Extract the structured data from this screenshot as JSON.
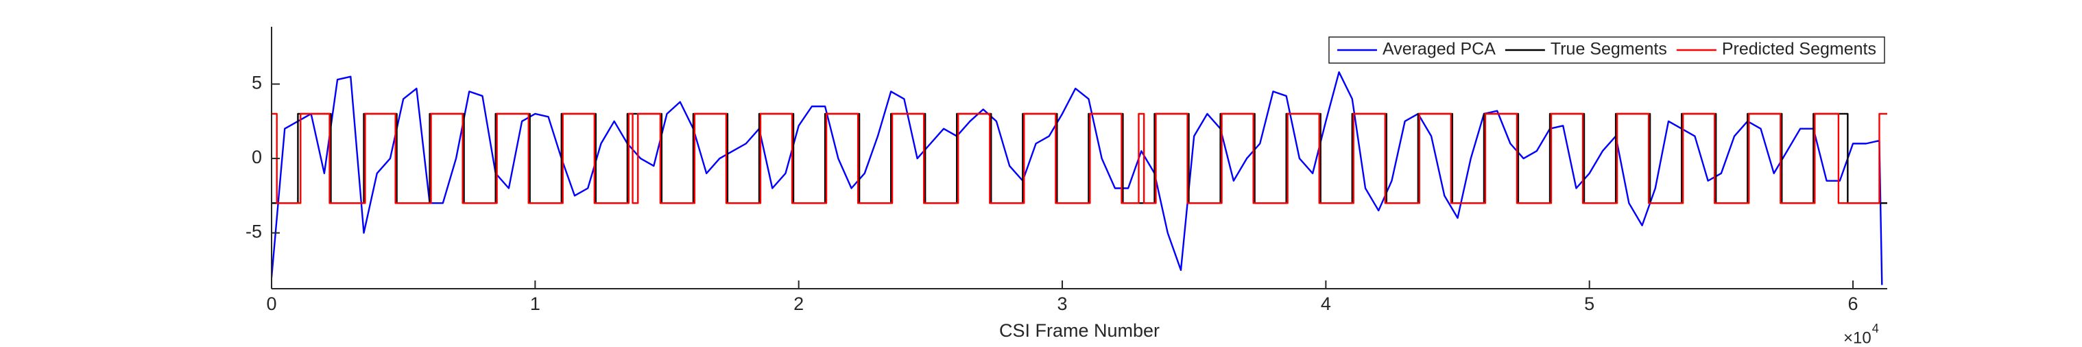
{
  "chart_data": {
    "type": "line",
    "x_label": "CSI Frame Number",
    "x_scale_base": "×10",
    "x_scale_exponent": "4",
    "xlim": [
      0,
      61300
    ],
    "ylim": [
      -8.75,
      8.85
    ],
    "xticks": [
      0,
      {
        "value": 10000,
        "label": "1"
      },
      {
        "value": 20000,
        "label": "2"
      },
      {
        "value": 30000,
        "label": "3"
      },
      {
        "value": 40000,
        "label": "4"
      },
      {
        "value": 50000,
        "label": "5"
      },
      {
        "value": 60000,
        "label": "6"
      }
    ],
    "yticks": [
      -5,
      0,
      5
    ],
    "grid": false,
    "legend": "northeast",
    "series": [
      {
        "name": "Averaged PCA",
        "color": "#0000ff",
        "drawstyle": "line",
        "x": [
          0,
          500,
          1000,
          1500,
          2000,
          2500,
          3000,
          3500,
          4000,
          4500,
          5000,
          5500,
          6000,
          6500,
          7000,
          7500,
          8000,
          8500,
          9000,
          9500,
          10000,
          10500,
          11000,
          11500,
          12000,
          12500,
          13000,
          13500,
          14000,
          14500,
          15000,
          15500,
          16000,
          16500,
          17000,
          17500,
          18000,
          18500,
          19000,
          19500,
          20000,
          20500,
          21000,
          21500,
          22000,
          22500,
          23000,
          23500,
          24000,
          24500,
          25000,
          25500,
          26000,
          26500,
          27000,
          27500,
          28000,
          28500,
          29000,
          29500,
          30000,
          30500,
          31000,
          31500,
          32000,
          32500,
          33000,
          33500,
          34000,
          34500,
          35000,
          35500,
          36000,
          36500,
          37000,
          37500,
          38000,
          38500,
          39000,
          39500,
          40000,
          40500,
          41000,
          41500,
          42000,
          42500,
          43000,
          43500,
          44000,
          44500,
          45000,
          45500,
          46000,
          46500,
          47000,
          47500,
          48000,
          48500,
          49000,
          49500,
          50000,
          50500,
          51000,
          51500,
          52000,
          52500,
          53000,
          53500,
          54000,
          54500,
          55000,
          55500,
          56000,
          56500,
          57000,
          57500,
          58000,
          58500,
          59000,
          59500,
          60000,
          60500,
          61000,
          61100
        ],
        "values": [
          -8,
          2,
          2.5,
          3,
          -1,
          5.3,
          5.5,
          -5,
          -1,
          0,
          4,
          4.7,
          -3,
          -3,
          0,
          4.5,
          4.2,
          -1,
          -2,
          2.5,
          3,
          2.8,
          0,
          -2.5,
          -2,
          1,
          2.5,
          1,
          0,
          -0.5,
          3,
          3.8,
          2,
          -1,
          0,
          0.5,
          1,
          2,
          -2,
          -1,
          2.2,
          3.5,
          3.5,
          0,
          -2,
          -1,
          1.5,
          4.5,
          4,
          0,
          1,
          2,
          1.5,
          2.5,
          3.3,
          2.5,
          -0.5,
          -1.5,
          1,
          1.5,
          3,
          4.7,
          4,
          0,
          -2,
          -2,
          0.5,
          -1,
          -5,
          -7.5,
          1.5,
          3,
          2,
          -1.5,
          0,
          1,
          4.5,
          4.2,
          0,
          -1,
          2.5,
          5.8,
          4,
          -2,
          -3.5,
          -1.5,
          2.5,
          3,
          1.5,
          -2.5,
          -4,
          0,
          3,
          3.2,
          1,
          0,
          0.5,
          2,
          2.2,
          -2,
          -1,
          0.5,
          1.5,
          -3,
          -4.5,
          -2,
          2.5,
          2,
          1.5,
          -1.5,
          -1,
          1.5,
          2.5,
          2,
          -1,
          0.5,
          2,
          2,
          -1.5,
          -1.5,
          1,
          1,
          1.2,
          -8.5
        ]
      },
      {
        "name": "True Segments",
        "color": "#000000",
        "drawstyle": "steps-post",
        "x": [
          0,
          1000,
          2250,
          3500,
          4750,
          6000,
          7300,
          8500,
          9800,
          11000,
          12300,
          13500,
          14800,
          16000,
          17300,
          18500,
          19800,
          21000,
          22300,
          23500,
          24800,
          26000,
          27300,
          28500,
          29800,
          31000,
          32300,
          33500,
          34800,
          36000,
          37300,
          38500,
          39800,
          41000,
          42300,
          43500,
          44800,
          46000,
          47300,
          48500,
          49800,
          51000,
          52300,
          53500,
          54800,
          56000,
          57300,
          58500,
          59800,
          61300
        ],
        "values": [
          -3,
          3,
          -3,
          3,
          -3,
          3,
          -3,
          3,
          -3,
          3,
          -3,
          3,
          -3,
          3,
          -3,
          3,
          -3,
          3,
          -3,
          3,
          -3,
          3,
          -3,
          3,
          -3,
          3,
          -3,
          3,
          -3,
          3,
          -3,
          3,
          -3,
          3,
          -3,
          3,
          -3,
          3,
          -3,
          3,
          -3,
          3,
          -3,
          3,
          -3,
          3,
          -3,
          3,
          -3,
          -3
        ]
      },
      {
        "name": "Predicted Segments",
        "color": "#ff0000",
        "drawstyle": "steps-post",
        "x": [
          0,
          200,
          1100,
          2200,
          3550,
          4700,
          6050,
          7250,
          8550,
          9750,
          11050,
          12250,
          13550,
          13700,
          13900,
          14750,
          16050,
          17250,
          18550,
          19750,
          21050,
          22250,
          23550,
          24750,
          26050,
          27250,
          28550,
          29750,
          31050,
          32250,
          32900,
          33100,
          33550,
          34750,
          36050,
          37250,
          38550,
          39750,
          41050,
          42250,
          43550,
          44750,
          46050,
          47250,
          48550,
          49750,
          51050,
          52250,
          53550,
          54750,
          56050,
          57250,
          58550,
          59450,
          61000,
          61300
        ],
        "values": [
          3,
          -3,
          3,
          -3,
          3,
          -3,
          3,
          -3,
          3,
          -3,
          3,
          -3,
          3,
          -3,
          3,
          -3,
          3,
          -3,
          3,
          -3,
          3,
          -3,
          3,
          -3,
          3,
          -3,
          3,
          -3,
          3,
          -3,
          3,
          -3,
          3,
          -3,
          3,
          -3,
          3,
          -3,
          3,
          -3,
          3,
          -3,
          3,
          -3,
          3,
          -3,
          3,
          -3,
          3,
          -3,
          3,
          -3,
          3,
          -3,
          3,
          3
        ]
      }
    ]
  }
}
